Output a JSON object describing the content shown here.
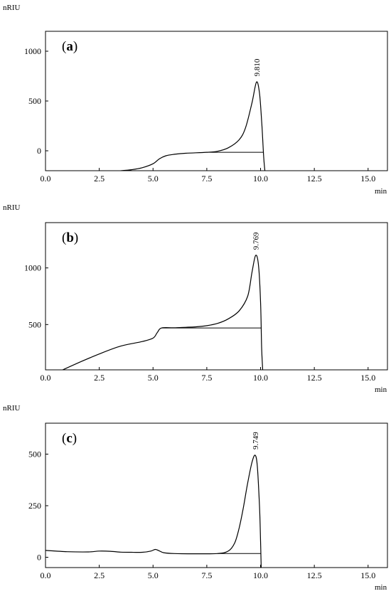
{
  "chart_data": [
    {
      "type": "line",
      "panel_label_prefix": "(",
      "panel_label_letter": "a",
      "panel_label_suffix": ")",
      "ylabel": "nRIU",
      "xlabel": "min",
      "xlim": [
        0,
        15.9
      ],
      "ylim": [
        -200,
        1200
      ],
      "xticks": [
        0.0,
        2.5,
        5.0,
        7.5,
        10.0,
        12.5,
        15.0
      ],
      "xtick_labels": [
        "0.0",
        "2.5",
        "5.0",
        "7.5",
        "10.0",
        "12.5",
        "15.0"
      ],
      "yticks": [
        0,
        500,
        1000
      ],
      "ytick_labels": [
        "0",
        "500",
        "1000"
      ],
      "peak_label": "9.810",
      "peak": {
        "x": 9.81,
        "y": 690
      },
      "baseline": {
        "x": [
          7.5,
          10.15
        ],
        "y": [
          -15,
          -15
        ]
      },
      "series": [
        {
          "x": [
            3.5,
            4.0,
            4.5,
            5.0,
            5.3,
            5.6,
            6.0,
            6.5,
            7.0,
            7.5,
            8.0,
            8.5,
            9.0,
            9.3,
            9.6,
            9.81,
            9.95,
            10.05,
            10.1,
            10.15,
            10.2
          ],
          "y": [
            -200,
            -190,
            -170,
            -130,
            -80,
            -50,
            -35,
            -25,
            -20,
            -15,
            -5,
            30,
            110,
            230,
            480,
            690,
            580,
            300,
            120,
            -80,
            -200
          ]
        }
      ]
    },
    {
      "type": "line",
      "panel_label_prefix": "(",
      "panel_label_letter": "b",
      "panel_label_suffix": ")",
      "ylabel": "nRIU",
      "xlabel": "min",
      "xlim": [
        0,
        15.9
      ],
      "ylim": [
        100,
        1400
      ],
      "xticks": [
        0.0,
        2.5,
        5.0,
        7.5,
        10.0,
        12.5,
        15.0
      ],
      "xtick_labels": [
        "0.0",
        "2.5",
        "5.0",
        "7.5",
        "10.0",
        "12.5",
        "15.0"
      ],
      "yticks": [
        500,
        1000
      ],
      "ytick_labels": [
        "500",
        "1000"
      ],
      "peak_label": "9.769",
      "peak": {
        "x": 9.769,
        "y": 1110
      },
      "baseline": {
        "x": [
          5.4,
          10.05
        ],
        "y": [
          470,
          470
        ]
      },
      "series": [
        {
          "x": [
            0.8,
            1.5,
            2.5,
            3.5,
            4.5,
            5.0,
            5.2,
            5.4,
            6.0,
            7.0,
            7.5,
            8.0,
            8.5,
            9.0,
            9.4,
            9.6,
            9.769,
            9.9,
            10.0,
            10.05,
            10.1
          ],
          "y": [
            100,
            160,
            240,
            310,
            350,
            380,
            430,
            470,
            472,
            480,
            490,
            510,
            550,
            620,
            750,
            960,
            1110,
            1030,
            700,
            300,
            100
          ]
        }
      ]
    },
    {
      "type": "line",
      "panel_label_prefix": "(",
      "panel_label_letter": "c",
      "panel_label_suffix": ")",
      "ylabel": "nRIU",
      "xlabel": "min",
      "xlim": [
        0,
        15.9
      ],
      "ylim": [
        -50,
        650
      ],
      "xticks": [
        0.0,
        2.5,
        5.0,
        7.5,
        10.0,
        12.5,
        15.0
      ],
      "xtick_labels": [
        "0.0",
        "2.5",
        "5.0",
        "7.5",
        "10.0",
        "12.5",
        "15.0"
      ],
      "yticks": [
        0,
        250,
        500
      ],
      "ytick_labels": [
        "0",
        "250",
        "500"
      ],
      "peak_label": "9.749",
      "peak": {
        "x": 9.749,
        "y": 495
      },
      "baseline": {
        "x": [
          8.0,
          10.0
        ],
        "y": [
          18,
          18
        ]
      },
      "series": [
        {
          "x": [
            0.0,
            1.0,
            2.0,
            2.5,
            3.0,
            3.5,
            4.0,
            4.5,
            4.9,
            5.1,
            5.25,
            5.5,
            6.0,
            7.0,
            8.0,
            8.5,
            8.8,
            9.0,
            9.2,
            9.4,
            9.6,
            9.749,
            9.85,
            9.95,
            10.0,
            10.03
          ],
          "y": [
            33,
            27,
            26,
            30,
            29,
            25,
            24,
            24,
            30,
            38,
            33,
            22,
            18,
            17,
            18,
            30,
            70,
            140,
            240,
            360,
            460,
            495,
            440,
            250,
            80,
            -50
          ]
        }
      ]
    }
  ]
}
